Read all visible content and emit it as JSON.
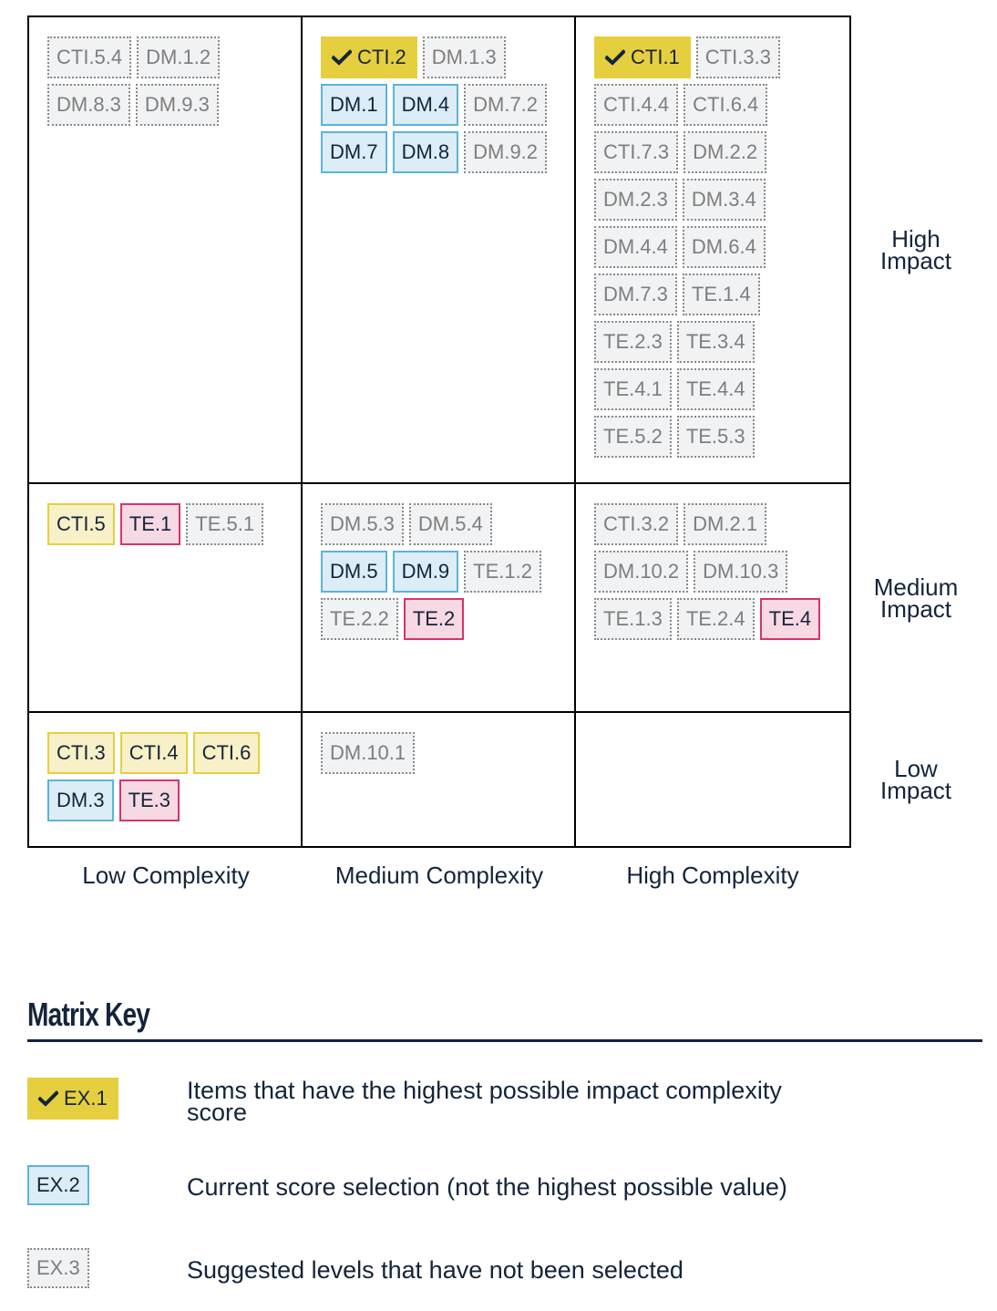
{
  "matrix": {
    "rows": [
      {
        "label": "High Impact",
        "label_lines": [
          "High",
          "Impact"
        ],
        "cells": [
          [
            {
              "code": "CTI.5.4",
              "style": "suggested"
            },
            {
              "code": "DM.1.2",
              "style": "suggested"
            },
            {
              "code": "DM.8.3",
              "style": "suggested"
            },
            {
              "code": "DM.9.3",
              "style": "suggested"
            }
          ],
          [
            {
              "code": "CTI.2",
              "style": "highest",
              "icon": "check-icon"
            },
            {
              "code": "DM.1.3",
              "style": "suggested"
            },
            {
              "code": "DM.1",
              "style": "selected"
            },
            {
              "code": "DM.4",
              "style": "selected"
            },
            {
              "code": "DM.7.2",
              "style": "suggested"
            },
            {
              "code": "DM.7",
              "style": "selected"
            },
            {
              "code": "DM.8",
              "style": "selected"
            },
            {
              "code": "DM.9.2",
              "style": "suggested"
            }
          ],
          [
            {
              "code": "CTI.1",
              "style": "highest",
              "icon": "check-icon"
            },
            {
              "code": "CTI.3.3",
              "style": "suggested"
            },
            {
              "code": "CTI.4.4",
              "style": "suggested"
            },
            {
              "code": "CTI.6.4",
              "style": "suggested"
            },
            {
              "code": "CTI.7.3",
              "style": "suggested"
            },
            {
              "code": "DM.2.2",
              "style": "suggested"
            },
            {
              "code": "DM.2.3",
              "style": "suggested"
            },
            {
              "code": "DM.3.4",
              "style": "suggested"
            },
            {
              "code": "DM.4.4",
              "style": "suggested"
            },
            {
              "code": "DM.6.4",
              "style": "suggested"
            },
            {
              "code": "DM.7.3",
              "style": "suggested"
            },
            {
              "code": "TE.1.4",
              "style": "suggested"
            },
            {
              "code": "TE.2.3",
              "style": "suggested"
            },
            {
              "code": "TE.3.4",
              "style": "suggested"
            },
            {
              "code": "TE.4.1",
              "style": "suggested"
            },
            {
              "code": "TE.4.4",
              "style": "suggested"
            },
            {
              "code": "TE.5.2",
              "style": "suggested"
            },
            {
              "code": "TE.5.3",
              "style": "suggested"
            }
          ]
        ]
      },
      {
        "label": "Medium Impact",
        "label_lines": [
          "Medium",
          "Impact"
        ],
        "cells": [
          [
            {
              "code": "CTI.5",
              "style": "cti"
            },
            {
              "code": "TE.1",
              "style": "te"
            },
            {
              "code": "TE.5.1",
              "style": "suggested"
            }
          ],
          [
            {
              "code": "DM.5.3",
              "style": "suggested"
            },
            {
              "code": "DM.5.4",
              "style": "suggested"
            },
            {
              "code": "DM.5",
              "style": "selected"
            },
            {
              "code": "DM.9",
              "style": "selected"
            },
            {
              "code": "TE.1.2",
              "style": "suggested"
            },
            {
              "code": "TE.2.2",
              "style": "suggested"
            },
            {
              "code": "TE.2",
              "style": "te"
            }
          ],
          [
            {
              "code": "CTI.3.2",
              "style": "suggested"
            },
            {
              "code": "DM.2.1",
              "style": "suggested"
            },
            {
              "code": "DM.10.2",
              "style": "suggested"
            },
            {
              "code": "DM.10.3",
              "style": "suggested"
            },
            {
              "code": "TE.1.3",
              "style": "suggested"
            },
            {
              "code": "TE.2.4",
              "style": "suggested"
            },
            {
              "code": "TE.4",
              "style": "te"
            }
          ]
        ]
      },
      {
        "label": "Low Impact",
        "label_lines": [
          "Low",
          "Impact"
        ],
        "cells": [
          [
            {
              "code": "CTI.3",
              "style": "cti"
            },
            {
              "code": "CTI.4",
              "style": "cti"
            },
            {
              "code": "CTI.6",
              "style": "cti"
            },
            {
              "code": "DM.3",
              "style": "selected"
            },
            {
              "code": "TE.3",
              "style": "te"
            }
          ],
          [
            {
              "code": "DM.10.1",
              "style": "suggested"
            }
          ],
          []
        ]
      }
    ],
    "columns": [
      "Low Complexity",
      "Medium Complexity",
      "High Complexity"
    ]
  },
  "key": {
    "title": "Matrix Key",
    "items": [
      {
        "code": "EX.1",
        "style": "highest",
        "icon": "check-icon",
        "description": "Items that have the highest possible impact complexity score"
      },
      {
        "code": "EX.2",
        "style": "selected",
        "description": "Current score selection (not the highest possible value)"
      },
      {
        "code": "EX.3",
        "style": "suggested",
        "description": "Suggested levels that have not been selected"
      }
    ]
  },
  "colors": {
    "highest": "#e6cf3f",
    "selected_bg": "#dcedf7",
    "selected_border": "#5cb3da",
    "suggested_bg": "#f1f2f4",
    "cti_bg": "#f8f0c6",
    "te_bg": "#f7d9e4",
    "te_border": "#d6336c",
    "text": "#14243a"
  }
}
